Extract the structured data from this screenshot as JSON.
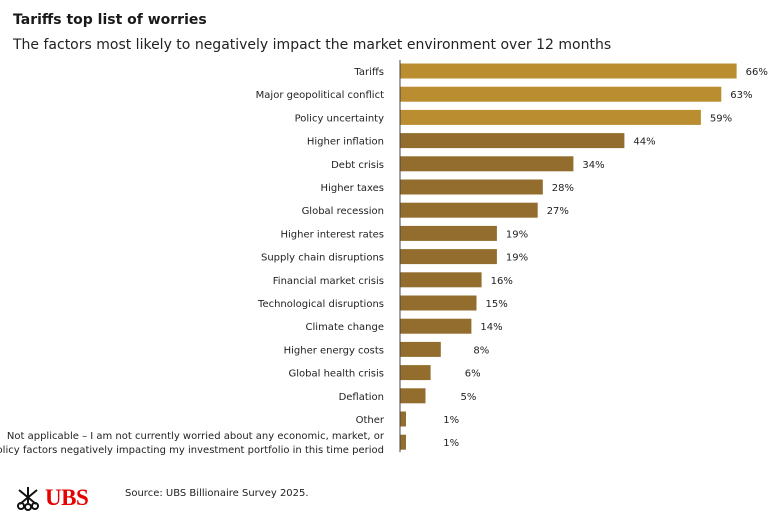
{
  "title": "Tariffs top list of worries",
  "subtitle": "The factors most likely to negatively impact the market environment over 12 months",
  "source": "Source: UBS Billionaire Survey 2025.",
  "logo": {
    "text": "UBS",
    "icon": "keys-icon",
    "color": "#e60000"
  },
  "chart_data": {
    "type": "bar",
    "orientation": "horizontal",
    "categories": [
      "Tariffs",
      "Major geopolitical conflict",
      "Policy uncertainty",
      "Higher inflation",
      "Debt crisis",
      "Higher taxes",
      "Global recession",
      "Higher interest rates",
      "Supply chain disruptions",
      "Financial market crisis",
      "Technological disruptions",
      "Climate change",
      "Higher energy costs",
      "Global health crisis",
      "Deflation",
      "Other",
      [
        "Not applicable – I am not currently worried about any economic, market, or",
        "policy factors negatively impacting my investment portfolio in this time period"
      ]
    ],
    "values": [
      66,
      63,
      59,
      44,
      34,
      28,
      27,
      19,
      19,
      16,
      15,
      14,
      8,
      6,
      5,
      1,
      1
    ],
    "labels": [
      "66%",
      "63%",
      "59%",
      "44%",
      "34%",
      "28%",
      "27%",
      "19%",
      "19%",
      "16%",
      "15%",
      "14%",
      "8%",
      "6%",
      "5%",
      "1%",
      "1%"
    ],
    "highlight_count": 3,
    "colors": {
      "highlight": "#b98d30",
      "default": "#936d2e"
    },
    "xlim": [
      0,
      70
    ],
    "grid": false,
    "legend": "none"
  }
}
